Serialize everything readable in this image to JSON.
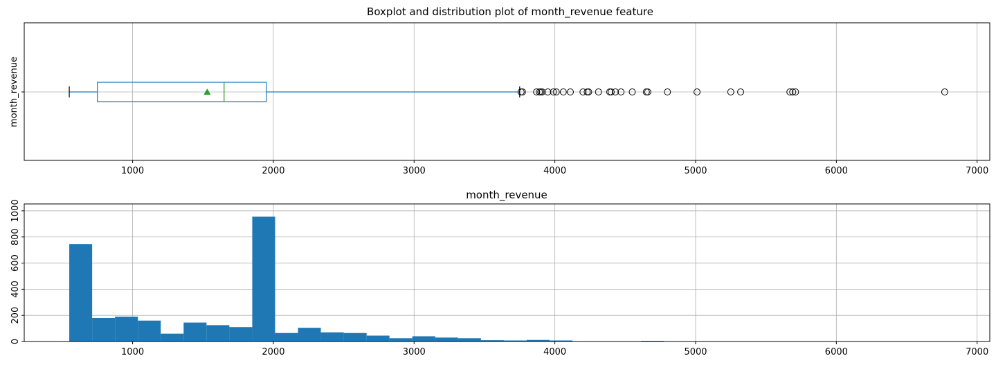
{
  "chart_data": [
    {
      "type": "box",
      "title": "Boxplot and distribution plot of month_revenue feature",
      "ylabel": "month_revenue",
      "xlim": [
        230,
        7090
      ],
      "xticks": [
        1000,
        2000,
        3000,
        4000,
        5000,
        6000,
        7000
      ],
      "xtick_labels": [
        "1000",
        "2000",
        "3000",
        "4000",
        "5000",
        "6000",
        "7000"
      ],
      "category": "month_revenue",
      "box": {
        "whisker_low": 550,
        "q1": 750,
        "median": 1650,
        "q3": 1950,
        "whisker_high": 3750,
        "mean": 1530
      },
      "outliers": [
        3760,
        3770,
        3870,
        3890,
        3900,
        3910,
        3950,
        3990,
        4010,
        4060,
        4110,
        4200,
        4230,
        4240,
        4310,
        4390,
        4400,
        4430,
        4470,
        4550,
        4650,
        4660,
        4800,
        5010,
        5250,
        5320,
        5670,
        5690,
        5710,
        6770
      ],
      "grid": true,
      "colors": {
        "box": "#1f77b4",
        "median": "#2ca02c",
        "mean_marker": "#2ca02c",
        "outlier": "#000000",
        "grid": "#b0b0b0"
      }
    },
    {
      "type": "histogram",
      "title": "month_revenue",
      "xlim": [
        230,
        7090
      ],
      "ylim": [
        0,
        1000
      ],
      "xticks": [
        1000,
        2000,
        3000,
        4000,
        5000,
        6000,
        7000
      ],
      "xtick_labels": [
        "1000",
        "2000",
        "3000",
        "4000",
        "5000",
        "6000",
        "7000"
      ],
      "yticks": [
        0,
        200,
        400,
        600,
        800,
        1000
      ],
      "ytick_labels": [
        "0",
        "200",
        "400",
        "600",
        "800",
        "1000"
      ],
      "bin_start": 550,
      "bin_width": 162.5,
      "values": [
        745,
        180,
        190,
        160,
        60,
        145,
        125,
        110,
        955,
        65,
        105,
        70,
        65,
        45,
        25,
        40,
        30,
        25,
        10,
        8,
        12,
        8,
        2,
        2,
        0,
        5,
        2,
        0,
        0,
        0,
        0,
        0,
        1,
        0,
        0,
        0,
        0,
        0,
        0,
        0
      ],
      "grid": true,
      "colors": {
        "bar": "#1f77b4",
        "grid": "#b0b0b0"
      }
    }
  ]
}
